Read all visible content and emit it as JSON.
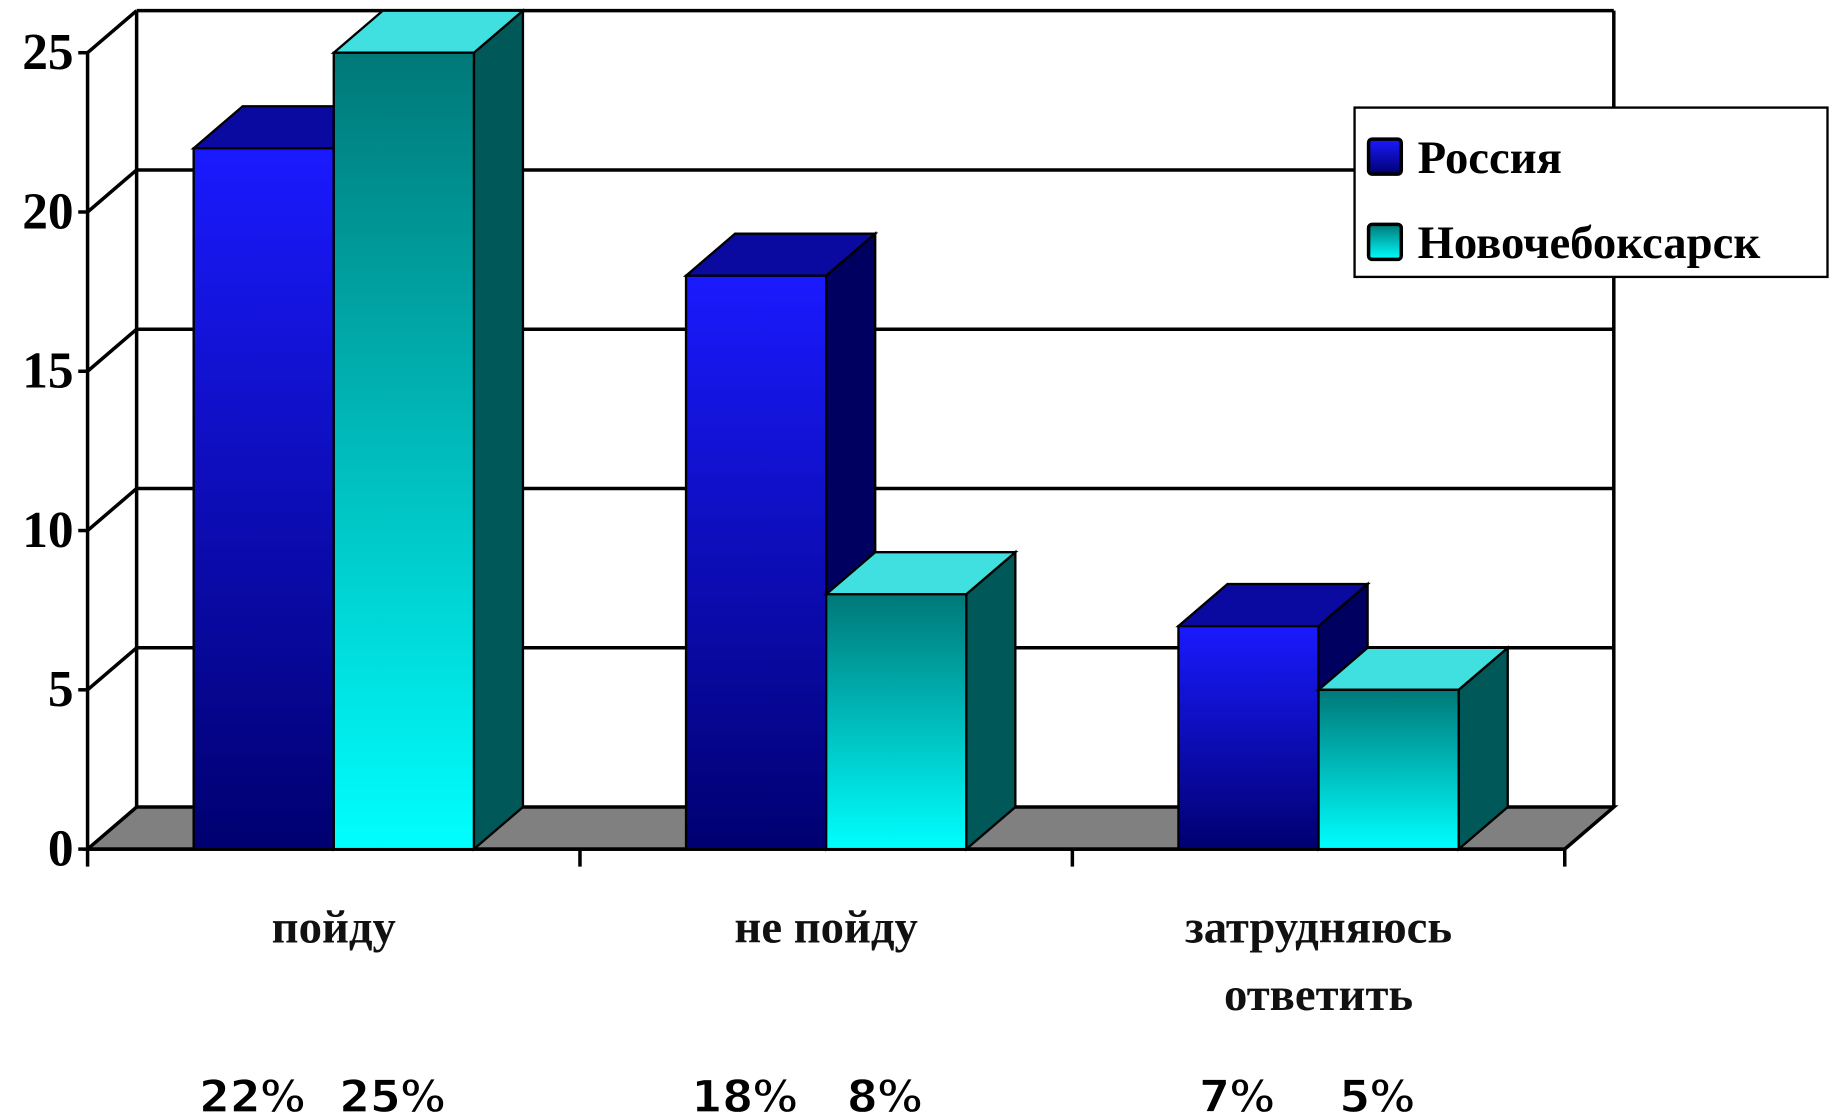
{
  "chart_data": {
    "type": "bar3d",
    "categories": [
      "пойду",
      "не пойду",
      "затрудняюсь ответить"
    ],
    "series": [
      {
        "name": "Россия",
        "color": "#0000ff",
        "values": [
          22,
          18,
          7
        ],
        "value_labels": [
          "22%",
          "18%",
          "7%"
        ]
      },
      {
        "name": "Новочебоксарск",
        "color": "#00ffff",
        "values": [
          25,
          8,
          5
        ],
        "value_labels": [
          "25%",
          "8%",
          "5%"
        ]
      }
    ],
    "ylim": [
      0,
      25
    ],
    "yticks": [
      0,
      5,
      10,
      15,
      20,
      25
    ],
    "grid": true,
    "legend": "top-right"
  }
}
